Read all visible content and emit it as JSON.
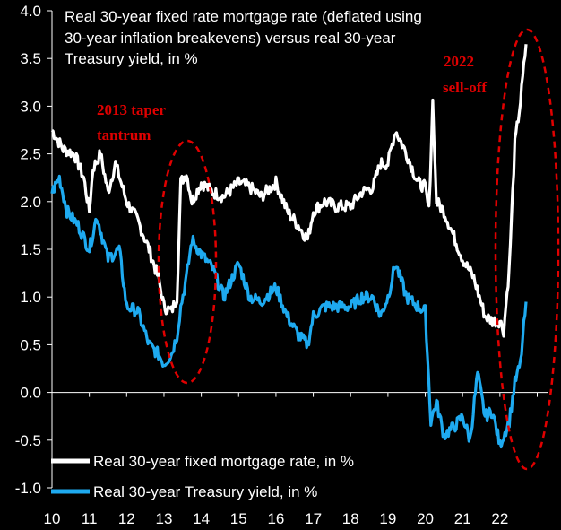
{
  "chart_data": {
    "type": "line",
    "title_lines": [
      "Real 30-year fixed rate mortgage rate (deflated using",
      "30-year inflation breakevens) versus real 30-year",
      "Treasury yield, in %"
    ],
    "xlabel": "",
    "ylabel": "",
    "xlim": [
      2010,
      2023.3
    ],
    "ylim": [
      -1.0,
      4.0
    ],
    "y_ticks": [
      "4.0",
      "3.5",
      "3.0",
      "2.5",
      "2.0",
      "1.5",
      "1.0",
      "0.5",
      "0.0",
      "-0.5",
      "-1.0"
    ],
    "y_tick_values": [
      4.0,
      3.5,
      3.0,
      2.5,
      2.0,
      1.5,
      1.0,
      0.5,
      0.0,
      -0.5,
      -1.0
    ],
    "x_ticks": [
      "10",
      "11",
      "12",
      "13",
      "14",
      "15",
      "16",
      "17",
      "18",
      "19",
      "20",
      "21",
      "22"
    ],
    "x_tick_values": [
      2010,
      2011,
      2012,
      2013,
      2014,
      2015,
      2016,
      2017,
      2018,
      2019,
      2020,
      2021,
      2022
    ],
    "grid": false,
    "legend": "bottom-left",
    "series": [
      {
        "name": "Real 30-year fixed mortgage rate, in %",
        "color": "#ffffff",
        "x": [
          2010.0,
          2010.3,
          2010.6,
          2010.85,
          2011.0,
          2011.1,
          2011.3,
          2011.5,
          2011.7,
          2012.0,
          2012.3,
          2012.6,
          2012.85,
          2013.0,
          2013.2,
          2013.35,
          2013.45,
          2013.6,
          2013.75,
          2014.0,
          2014.3,
          2014.6,
          2015.0,
          2015.3,
          2015.6,
          2016.0,
          2016.3,
          2016.6,
          2016.85,
          2017.0,
          2017.3,
          2017.6,
          2018.0,
          2018.3,
          2018.6,
          2018.8,
          2019.0,
          2019.2,
          2019.5,
          2019.8,
          2020.0,
          2020.1,
          2020.2,
          2020.3,
          2020.5,
          2020.8,
          2021.0,
          2021.3,
          2021.6,
          2021.8,
          2022.0,
          2022.1,
          2022.25,
          2022.4,
          2022.55,
          2022.7
        ],
        "values": [
          2.75,
          2.55,
          2.5,
          2.25,
          1.9,
          2.35,
          2.5,
          2.1,
          2.4,
          2.0,
          1.8,
          1.5,
          1.2,
          0.9,
          0.85,
          1.0,
          2.2,
          2.3,
          2.0,
          2.2,
          2.1,
          2.05,
          2.2,
          2.15,
          2.05,
          2.2,
          1.9,
          1.75,
          1.6,
          1.9,
          2.0,
          1.95,
          1.95,
          2.1,
          2.15,
          2.4,
          2.4,
          2.75,
          2.5,
          2.2,
          2.15,
          1.9,
          3.05,
          2.0,
          1.9,
          1.6,
          1.4,
          1.2,
          0.8,
          0.75,
          0.75,
          0.65,
          1.3,
          2.6,
          3.05,
          3.65
        ]
      },
      {
        "name": "Real 30-year Treasury yield, in %",
        "color": "#1eaaf0",
        "x": [
          2010.0,
          2010.2,
          2010.4,
          2010.7,
          2011.0,
          2011.2,
          2011.5,
          2011.8,
          2012.0,
          2012.3,
          2012.6,
          2012.85,
          2013.0,
          2013.2,
          2013.35,
          2013.45,
          2013.6,
          2013.75,
          2014.0,
          2014.3,
          2014.6,
          2015.0,
          2015.3,
          2015.6,
          2016.0,
          2016.3,
          2016.6,
          2016.85,
          2017.0,
          2017.3,
          2017.6,
          2018.0,
          2018.3,
          2018.6,
          2018.8,
          2019.0,
          2019.2,
          2019.5,
          2019.8,
          2020.0,
          2020.15,
          2020.3,
          2020.5,
          2020.8,
          2021.0,
          2021.2,
          2021.4,
          2021.6,
          2021.8,
          2022.0,
          2022.1,
          2022.25,
          2022.4,
          2022.55,
          2022.7
        ],
        "values": [
          2.1,
          2.25,
          1.9,
          1.75,
          1.5,
          1.85,
          1.4,
          1.5,
          0.9,
          0.85,
          0.5,
          0.4,
          0.3,
          0.4,
          0.6,
          0.9,
          1.2,
          1.6,
          1.45,
          1.3,
          1.0,
          1.35,
          1.0,
          0.95,
          1.1,
          0.8,
          0.6,
          0.5,
          0.8,
          0.9,
          0.9,
          0.9,
          1.0,
          1.0,
          0.8,
          1.0,
          1.35,
          1.0,
          0.9,
          0.85,
          -0.3,
          -0.1,
          -0.45,
          -0.35,
          -0.25,
          -0.5,
          0.2,
          -0.25,
          -0.2,
          -0.55,
          -0.45,
          -0.3,
          0.1,
          0.3,
          0.95
        ]
      }
    ],
    "annotations": [
      {
        "lines": [
          "2013 taper",
          "tantrum"
        ],
        "color": "#e00000"
      },
      {
        "lines": [
          "2022",
          "sell-off"
        ],
        "color": "#e00000"
      }
    ]
  }
}
